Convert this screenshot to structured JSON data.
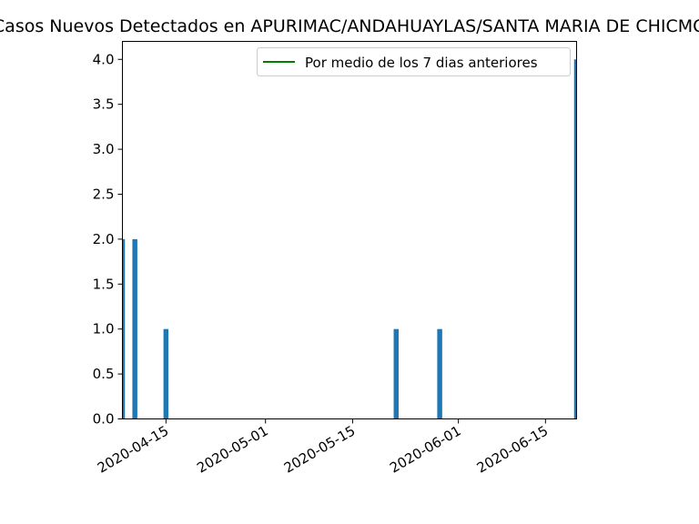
{
  "chart_data": {
    "type": "bar",
    "title": "Casos Nuevos Detectados en APURIMAC/ANDAHUAYLAS/SANTA MARIA DE CHICMO",
    "xlabel": "",
    "ylabel": "",
    "xlim": [
      "2020-04-08",
      "2020-06-20"
    ],
    "ylim": [
      0,
      4.2
    ],
    "x_ticks": [
      "2020-04-15",
      "2020-05-01",
      "2020-05-15",
      "2020-06-01",
      "2020-06-15"
    ],
    "y_ticks": [
      "0.0",
      "0.5",
      "1.0",
      "1.5",
      "2.0",
      "2.5",
      "3.0",
      "3.5",
      "4.0"
    ],
    "bars": [
      {
        "date": "2020-04-08",
        "value": 2
      },
      {
        "date": "2020-04-10",
        "value": 2
      },
      {
        "date": "2020-04-15",
        "value": 1
      },
      {
        "date": "2020-05-22",
        "value": 1
      },
      {
        "date": "2020-05-29",
        "value": 1
      },
      {
        "date": "2020-06-20",
        "value": 4
      }
    ],
    "series": [
      {
        "name": "Por medio de los 7 dias anteriores",
        "type": "line",
        "color": "#008000",
        "values": []
      }
    ],
    "bar_color": "#1f77b4",
    "legend": {
      "position": "upper-right",
      "entries": [
        "Por medio de los 7 dias anteriores"
      ]
    },
    "grid": false
  }
}
